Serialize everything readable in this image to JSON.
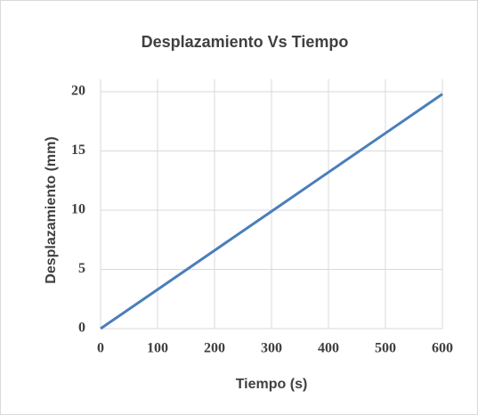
{
  "chart_data": {
    "type": "line",
    "title": "Desplazamiento Vs Tiempo",
    "x_label": "Tiempo (s)",
    "y_label": "Desplazamiento (mm)",
    "x": [
      0,
      100,
      200,
      300,
      400,
      500,
      600
    ],
    "series": [
      {
        "name": "Desplazamiento",
        "color": "#4a7ebb",
        "values": [
          0,
          3.3,
          6.6,
          9.9,
          13.2,
          16.5,
          19.8
        ]
      }
    ],
    "xlim": [
      0,
      600
    ],
    "xticks": [
      0,
      100,
      200,
      300,
      400,
      500,
      600
    ],
    "ylim": [
      0,
      20
    ],
    "yticks": [
      0,
      5,
      10,
      15,
      20
    ],
    "grid": true
  }
}
